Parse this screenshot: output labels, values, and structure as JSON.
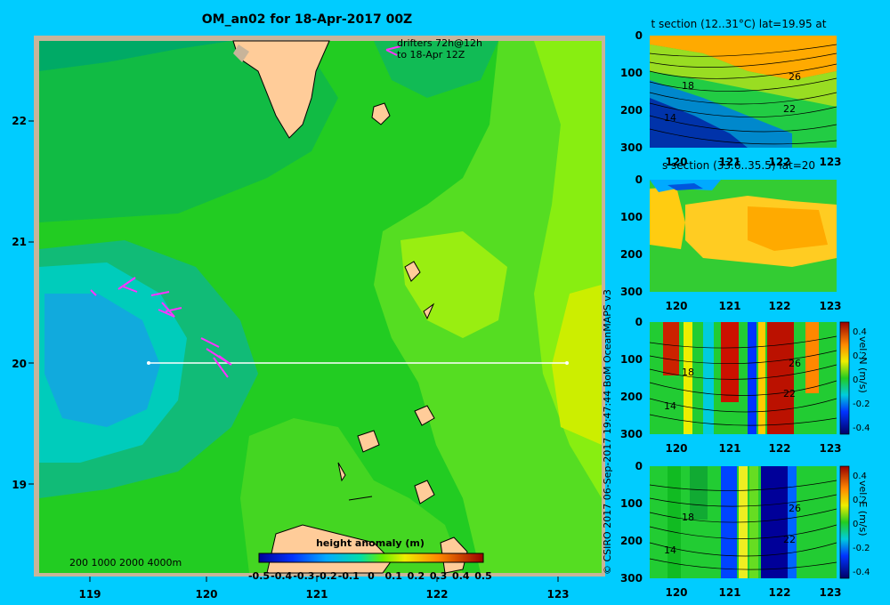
{
  "map": {
    "title": "OM_an02 for 18-Apr-2017 00Z",
    "drifters_note_line1": "drifters 72h@12h",
    "drifters_note_line2": "to 18-Apr 12Z",
    "depth_legend": "200 1000 2000 4000m",
    "colorbar_title": "height anomaly (m)",
    "colorbar_ticks": [
      "-0.5",
      "-0.4",
      "-0.3",
      "-0.2",
      "-0.1",
      "0",
      "0.1",
      "0.2",
      "0.3",
      "0.4",
      "0.5"
    ],
    "lon_ticks": [
      "119",
      "120",
      "121",
      "122",
      "123"
    ],
    "lat_ticks": [
      "22",
      "21",
      "20",
      "19"
    ],
    "section_lat": 20,
    "section_lon_range": [
      119.5,
      123.2
    ],
    "colors": {
      "land": "#ffcc99",
      "frame": "#c8b49a",
      "background": "#00ccff",
      "section_line": "#ffffff",
      "drifter": "#ff33ff"
    }
  },
  "credit": "© CSIRO 2017   06-Sep-2017 19:47:44 BoM OceanMAPS v3",
  "panels": {
    "t": {
      "title": "t section (12..31°C) lat=19.95 at",
      "depth_ticks": [
        "0",
        "100",
        "200",
        "300"
      ],
      "lon_ticks": [
        "120",
        "121",
        "122",
        "123"
      ],
      "contour_labels": [
        "18",
        "14",
        "26",
        "22"
      ]
    },
    "s": {
      "title": "s section (33.6..35.5) lat=20",
      "depth_ticks": [
        "0",
        "100",
        "200",
        "300"
      ],
      "lon_ticks": [
        "120",
        "121",
        "122",
        "123"
      ]
    },
    "vn": {
      "axis_label": "vel. N (m/s)",
      "depth_ticks": [
        "0",
        "100",
        "200",
        "300"
      ],
      "lon_ticks": [
        "120",
        "121",
        "122",
        "123"
      ],
      "cbar_ticks": [
        "0.4",
        "0.2",
        "0",
        "-0.2",
        "-0.4"
      ],
      "contour_labels": [
        "18",
        "14",
        "26",
        "22"
      ]
    },
    "ve": {
      "axis_label": "vel. E (m/s)",
      "depth_ticks": [
        "0",
        "100",
        "200",
        "300"
      ],
      "lon_ticks": [
        "120",
        "121",
        "122",
        "123"
      ],
      "cbar_ticks": [
        "0.4",
        "0.2",
        "0",
        "-0.2",
        "-0.4"
      ],
      "contour_labels": [
        "18",
        "14",
        "26",
        "22"
      ]
    }
  }
}
